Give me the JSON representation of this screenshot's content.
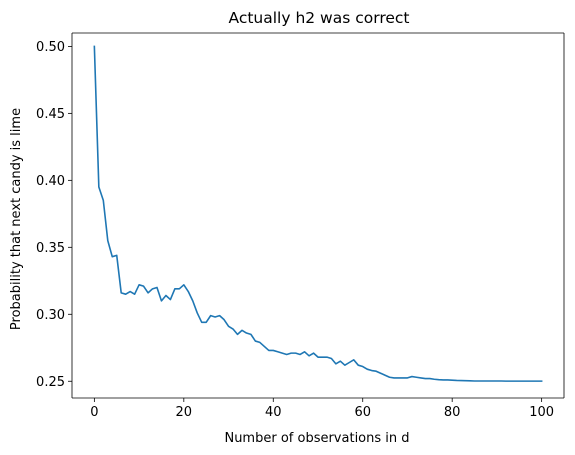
{
  "chart_data": {
    "type": "line",
    "title": "Actually h2 was correct",
    "xlabel": "Number of observations in d",
    "ylabel": "Probability that next candy is lime",
    "xlim": [
      -5,
      105
    ],
    "ylim": [
      0.2375,
      0.51
    ],
    "xticks": [
      0,
      20,
      40,
      60,
      80,
      100
    ],
    "xtick_labels": [
      "0",
      "20",
      "40",
      "60",
      "80",
      "100"
    ],
    "yticks": [
      0.25,
      0.3,
      0.35,
      0.4,
      0.45,
      0.5
    ],
    "ytick_labels": [
      "0.25",
      "0.30",
      "0.35",
      "0.40",
      "0.45",
      "0.50"
    ],
    "grid": false,
    "legend": "none",
    "series": [
      {
        "color": "#1f77b4",
        "x": [
          0,
          1,
          2,
          3,
          4,
          5,
          6,
          7,
          8,
          9,
          10,
          11,
          12,
          13,
          14,
          15,
          16,
          17,
          18,
          19,
          20,
          21,
          22,
          23,
          24,
          25,
          26,
          27,
          28,
          29,
          30,
          31,
          32,
          33,
          34,
          35,
          36,
          37,
          38,
          39,
          40,
          41,
          42,
          43,
          44,
          45,
          46,
          47,
          48,
          49,
          50,
          51,
          52,
          53,
          54,
          55,
          56,
          57,
          58,
          59,
          60,
          61,
          62,
          63,
          64,
          65,
          66,
          67,
          68,
          69,
          70,
          71,
          72,
          73,
          74,
          75,
          76,
          77,
          78,
          79,
          80,
          81,
          82,
          83,
          84,
          85,
          86,
          87,
          88,
          89,
          90,
          91,
          92,
          93,
          94,
          95,
          96,
          97,
          98,
          99,
          100
        ],
        "y": [
          0.5,
          0.395,
          0.385,
          0.355,
          0.343,
          0.344,
          0.316,
          0.315,
          0.317,
          0.315,
          0.322,
          0.321,
          0.316,
          0.319,
          0.32,
          0.31,
          0.314,
          0.311,
          0.319,
          0.319,
          0.322,
          0.317,
          0.31,
          0.301,
          0.294,
          0.294,
          0.299,
          0.298,
          0.299,
          0.296,
          0.291,
          0.289,
          0.285,
          0.288,
          0.286,
          0.285,
          0.28,
          0.279,
          0.276,
          0.273,
          0.273,
          0.272,
          0.271,
          0.27,
          0.271,
          0.271,
          0.27,
          0.272,
          0.269,
          0.271,
          0.268,
          0.268,
          0.268,
          0.267,
          0.263,
          0.265,
          0.262,
          0.264,
          0.266,
          0.262,
          0.261,
          0.259,
          0.258,
          0.2575,
          0.256,
          0.2545,
          0.253,
          0.2525,
          0.2525,
          0.2525,
          0.2525,
          0.2535,
          0.253,
          0.2525,
          0.252,
          0.252,
          0.2515,
          0.2512,
          0.251,
          0.251,
          0.2508,
          0.2506,
          0.2505,
          0.2504,
          0.2503,
          0.2502,
          0.2502,
          0.2502,
          0.2502,
          0.2502,
          0.2502,
          0.2502,
          0.2501,
          0.2501,
          0.2501,
          0.2501,
          0.2501,
          0.2501,
          0.2501,
          0.2501,
          0.2501
        ]
      }
    ]
  }
}
